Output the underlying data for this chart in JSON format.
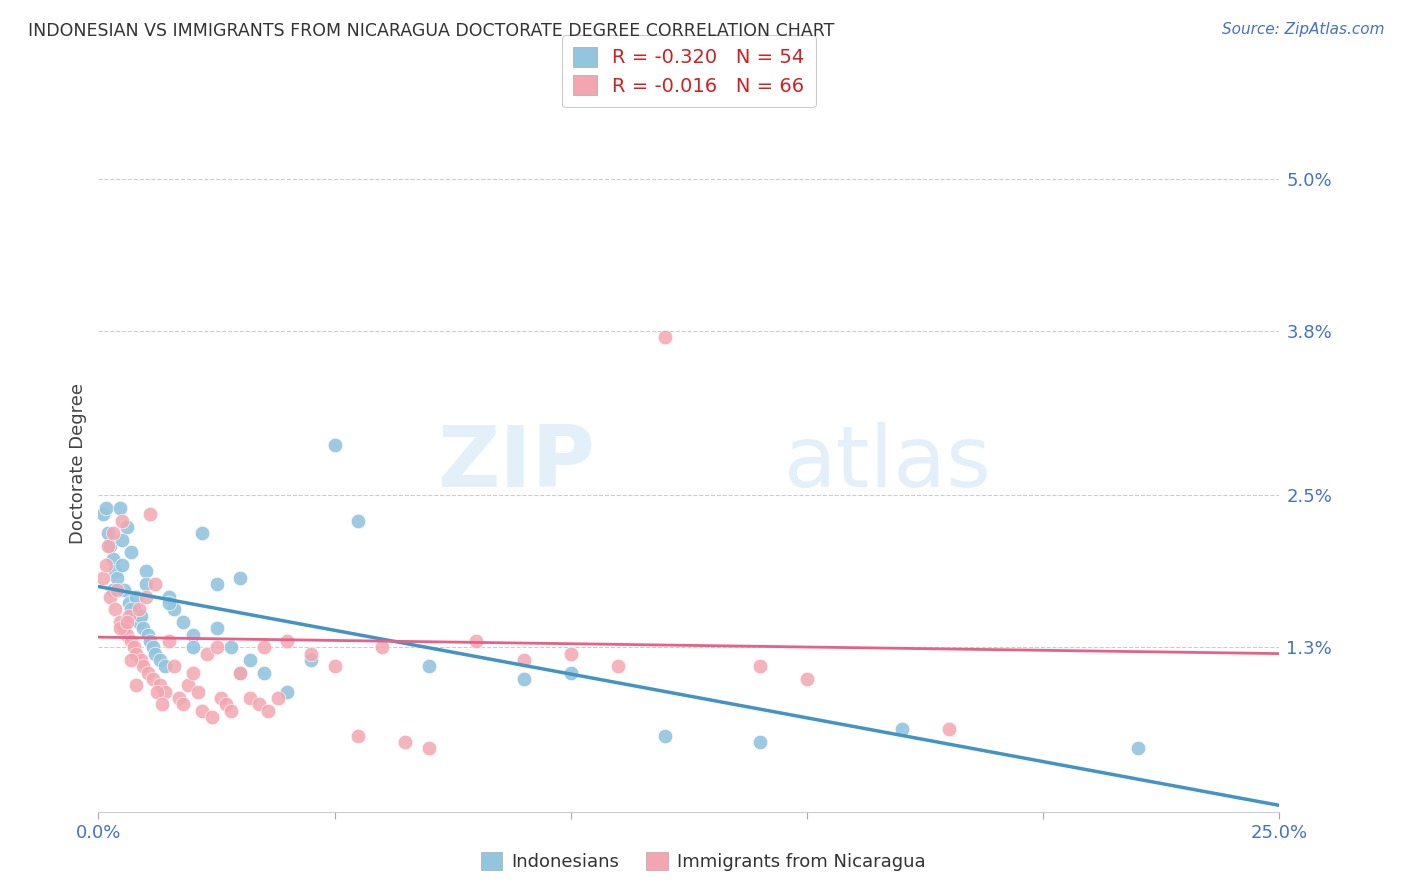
{
  "title": "INDONESIAN VS IMMIGRANTS FROM NICARAGUA DOCTORATE DEGREE CORRELATION CHART",
  "source": "Source: ZipAtlas.com",
  "ylabel": "Doctorate Degree",
  "ytick_values": [
    1.3,
    2.5,
    3.8,
    5.0
  ],
  "ytick_labels": [
    "1.3%",
    "2.5%",
    "3.8%",
    "5.0%"
  ],
  "xlim": [
    0.0,
    25.0
  ],
  "ylim": [
    0.0,
    5.5
  ],
  "watermark_zip": "ZIP",
  "watermark_atlas": "atlas",
  "legend_line1": "R = -0.320   N = 54",
  "legend_line2": "R = -0.016   N = 66",
  "legend_blue_label": "Indonesians",
  "legend_pink_label": "Immigrants from Nicaragua",
  "blue_color": "#92c5de",
  "pink_color": "#f4a6b0",
  "trendline_blue_color": "#4393c3",
  "trendline_pink_color": "#e8608a",
  "blue_trendline_x0": 0.0,
  "blue_trendline_y0": 1.78,
  "blue_trendline_x1": 25.0,
  "blue_trendline_y1": 0.05,
  "pink_trendline_x0": 0.0,
  "pink_trendline_y0": 1.38,
  "pink_trendline_x1": 25.0,
  "pink_trendline_y1": 1.25,
  "blue_x": [
    0.1,
    0.15,
    0.2,
    0.25,
    0.3,
    0.35,
    0.4,
    0.5,
    0.55,
    0.6,
    0.65,
    0.7,
    0.75,
    0.8,
    0.85,
    0.9,
    0.95,
    1.0,
    1.05,
    1.1,
    1.15,
    1.2,
    1.3,
    1.4,
    1.5,
    1.6,
    1.8,
    2.0,
    2.2,
    2.5,
    2.8,
    3.0,
    3.2,
    3.5,
    4.0,
    5.0,
    5.5,
    7.0,
    9.0,
    10.0,
    12.0,
    14.0,
    17.0,
    22.0,
    0.3,
    0.5,
    0.7,
    1.0,
    1.5,
    2.0,
    2.5,
    3.0,
    4.5,
    0.45
  ],
  "blue_y": [
    2.35,
    2.4,
    2.2,
    2.1,
    2.0,
    1.9,
    1.85,
    2.15,
    1.75,
    2.25,
    1.65,
    2.05,
    1.6,
    1.7,
    1.5,
    1.55,
    1.45,
    1.9,
    1.4,
    1.35,
    1.3,
    1.25,
    1.2,
    1.15,
    1.7,
    1.6,
    1.5,
    1.4,
    2.2,
    1.8,
    1.3,
    1.85,
    1.2,
    1.1,
    0.95,
    2.9,
    2.3,
    1.15,
    1.05,
    1.1,
    0.6,
    0.55,
    0.65,
    0.5,
    1.75,
    1.95,
    1.6,
    1.8,
    1.65,
    1.3,
    1.45,
    1.1,
    1.2,
    2.4
  ],
  "pink_x": [
    0.1,
    0.15,
    0.2,
    0.25,
    0.3,
    0.35,
    0.4,
    0.45,
    0.5,
    0.55,
    0.6,
    0.65,
    0.7,
    0.75,
    0.8,
    0.85,
    0.9,
    0.95,
    1.0,
    1.05,
    1.1,
    1.15,
    1.2,
    1.3,
    1.4,
    1.5,
    1.6,
    1.7,
    1.8,
    1.9,
    2.0,
    2.1,
    2.2,
    2.3,
    2.4,
    2.5,
    2.6,
    2.7,
    2.8,
    3.0,
    3.2,
    3.4,
    3.6,
    3.8,
    4.0,
    4.5,
    5.0,
    5.5,
    6.0,
    7.0,
    8.0,
    9.0,
    10.0,
    11.0,
    12.0,
    14.0,
    15.0,
    18.0,
    3.5,
    6.5,
    0.45,
    0.6,
    0.7,
    0.8,
    1.25,
    1.35
  ],
  "pink_y": [
    1.85,
    1.95,
    2.1,
    1.7,
    2.2,
    1.6,
    1.75,
    1.5,
    2.3,
    1.45,
    1.4,
    1.55,
    1.35,
    1.3,
    1.25,
    1.6,
    1.2,
    1.15,
    1.7,
    1.1,
    2.35,
    1.05,
    1.8,
    1.0,
    0.95,
    1.35,
    1.15,
    0.9,
    0.85,
    1.0,
    1.1,
    0.95,
    0.8,
    1.25,
    0.75,
    1.3,
    0.9,
    0.85,
    0.8,
    1.1,
    0.9,
    0.85,
    0.8,
    0.9,
    1.35,
    1.25,
    1.15,
    0.6,
    1.3,
    0.5,
    1.35,
    1.2,
    1.25,
    1.15,
    3.75,
    1.15,
    1.05,
    0.65,
    1.3,
    0.55,
    1.45,
    1.5,
    1.2,
    1.0,
    0.95,
    0.85
  ]
}
